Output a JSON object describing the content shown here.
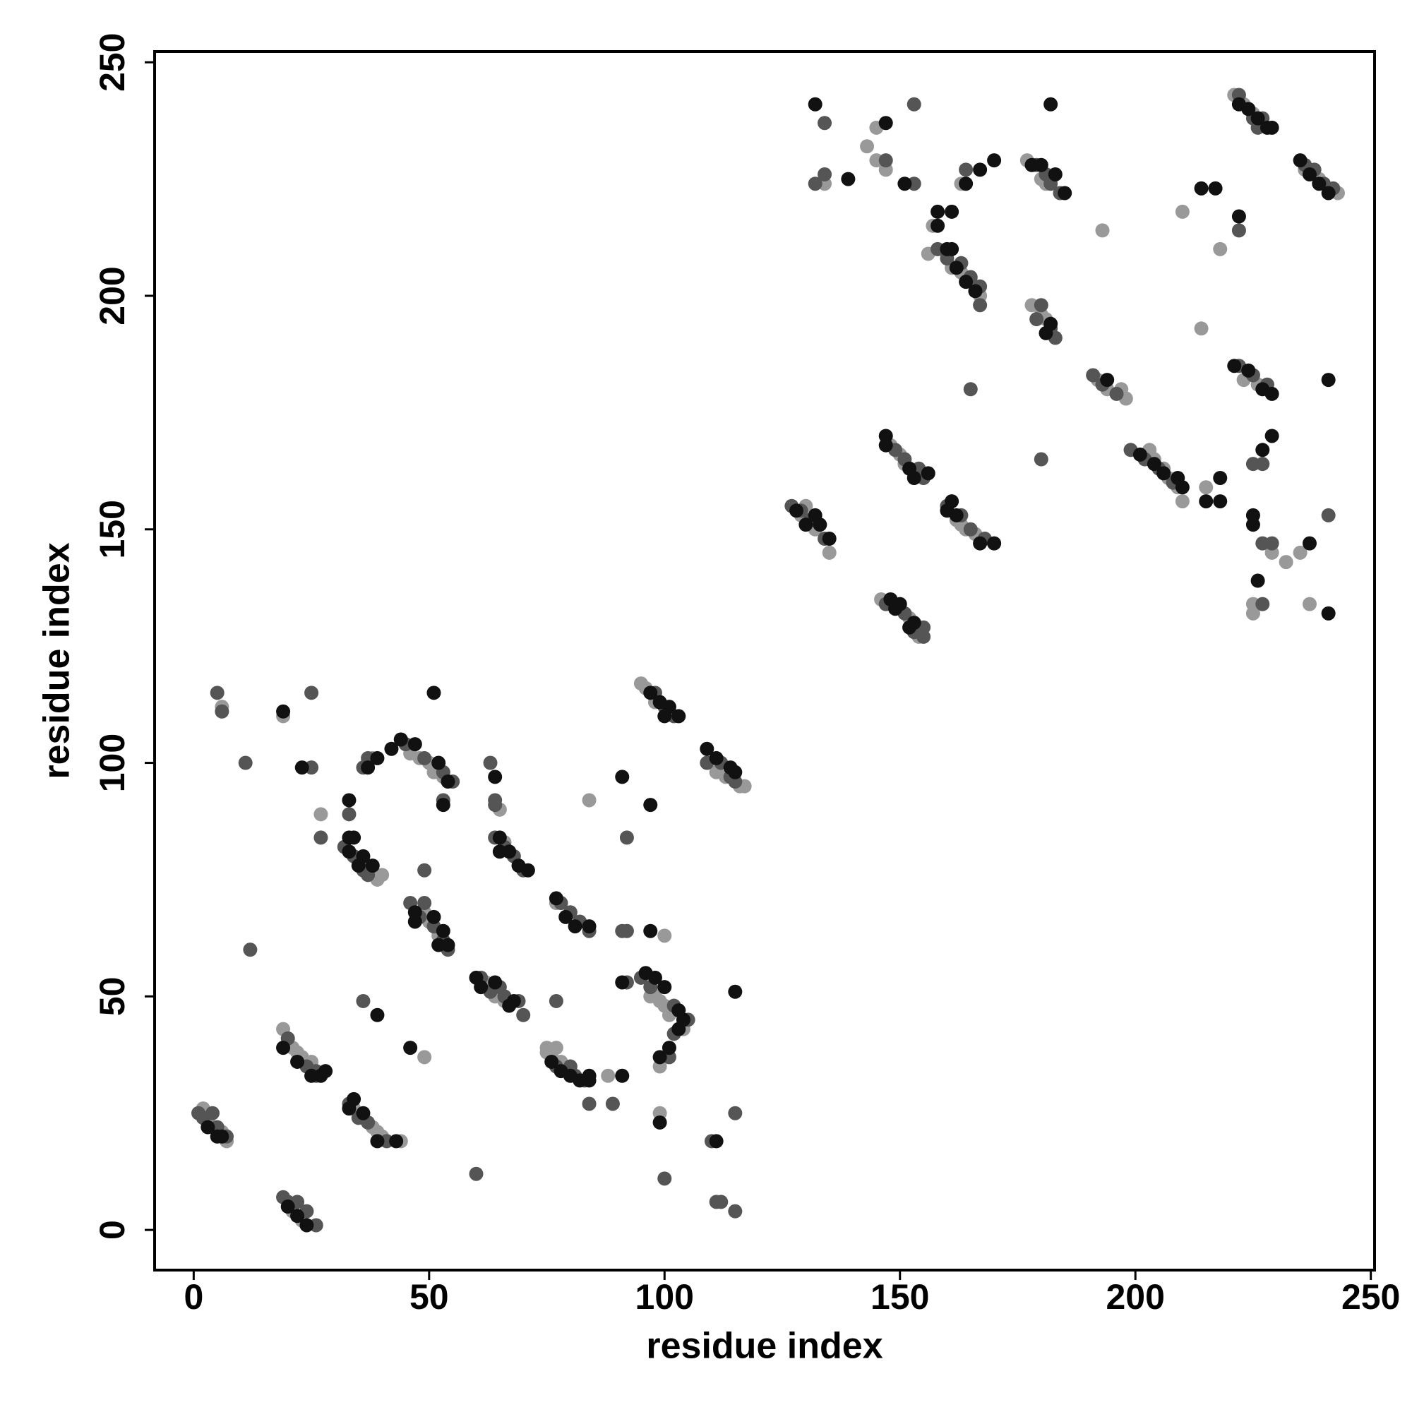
{
  "chart_data": {
    "type": "scatter",
    "x_label": "residue index",
    "y_label": "residue index",
    "xlim": [
      -8.3,
      250.8
    ],
    "ylim": [
      -8.6,
      252.3
    ],
    "xticks": [
      0,
      50,
      100,
      150,
      200,
      250
    ],
    "yticks": [
      0,
      50,
      100,
      150,
      200,
      250
    ],
    "series": [
      {
        "color": "#999999",
        "x": [
          2,
          3,
          6,
          7,
          21,
          23,
          19,
          21,
          22,
          23,
          25,
          34,
          36,
          38,
          39,
          40,
          44,
          35,
          37,
          38,
          39,
          40,
          38,
          46,
          48,
          50,
          51,
          53,
          6,
          19,
          27,
          49,
          84,
          49,
          50,
          52,
          62,
          64,
          66,
          65,
          66,
          77,
          75,
          75,
          76,
          77,
          78,
          79,
          88,
          100,
          99,
          97,
          98,
          99,
          100,
          101,
          99,
          104,
          95,
          96,
          98,
          111,
          113,
          116,
          117,
          129,
          130,
          132,
          135,
          146,
          148,
          152,
          154,
          148,
          150,
          151,
          153,
          162,
          163,
          164,
          166,
          157,
          156,
          161,
          163,
          165,
          167,
          134,
          143,
          145,
          145,
          147,
          163,
          177,
          180,
          181,
          178,
          180,
          181,
          192,
          194,
          197,
          198,
          203,
          204,
          206,
          207,
          209,
          210,
          193,
          210,
          214,
          215,
          218,
          221,
          223,
          225,
          227,
          236,
          239,
          243,
          223,
          226,
          229,
          232,
          235,
          225,
          225,
          237
        ],
        "values": [
          26,
          23,
          21,
          19,
          4,
          2,
          43,
          39,
          38,
          37,
          36,
          26,
          24,
          22,
          21,
          20,
          19,
          79,
          78,
          76,
          75,
          76,
          101,
          102,
          101,
          100,
          98,
          97,
          112,
          110,
          89,
          37,
          92,
          68,
          66,
          63,
          53,
          50,
          49,
          90,
          83,
          70,
          39,
          38,
          37,
          39,
          36,
          35,
          33,
          63,
          25,
          50,
          51,
          49,
          48,
          46,
          35,
          43,
          117,
          116,
          113,
          98,
          97,
          95,
          95,
          153,
          155,
          150,
          145,
          135,
          134,
          131,
          127,
          168,
          166,
          164,
          162,
          152,
          151,
          150,
          149,
          215,
          209,
          206,
          205,
          203,
          200,
          224,
          232,
          236,
          229,
          227,
          224,
          229,
          225,
          224,
          198,
          196,
          195,
          182,
          180,
          180,
          178,
          167,
          165,
          163,
          161,
          159,
          156,
          214,
          218,
          193,
          159,
          210,
          243,
          241,
          239,
          237,
          227,
          225,
          222,
          182,
          181,
          145,
          143,
          145,
          134,
          132,
          134
        ]
      },
      {
        "color": "#555555",
        "x": [
          1,
          2,
          4,
          5,
          7,
          19,
          20,
          22,
          24,
          26,
          20,
          24,
          26,
          26,
          33,
          35,
          37,
          41,
          33,
          32,
          34,
          36,
          37,
          36,
          37,
          44,
          45,
          49,
          53,
          55,
          53,
          5,
          6,
          11,
          12,
          25,
          25,
          27,
          36,
          49,
          60,
          46,
          49,
          48,
          51,
          53,
          54,
          61,
          63,
          65,
          66,
          69,
          70,
          63,
          64,
          64,
          64,
          66,
          68,
          70,
          78,
          80,
          82,
          84,
          77,
          80,
          81,
          83,
          84,
          77,
          89,
          92,
          91,
          92,
          92,
          100,
          110,
          111,
          112,
          115,
          115,
          95,
          97,
          102,
          105,
          102,
          101,
          98,
          100,
          102,
          109,
          112,
          114,
          115,
          127,
          129,
          131,
          134,
          147,
          151,
          153,
          155,
          155,
          149,
          151,
          154,
          155,
          160,
          163,
          165,
          168,
          158,
          160,
          163,
          165,
          167,
          167,
          134,
          134,
          132,
          147,
          153,
          153,
          164,
          165,
          179,
          181,
          182,
          184,
          180,
          179,
          182,
          183,
          191,
          193,
          196,
          199,
          202,
          205,
          208,
          180,
          222,
          222,
          225,
          227,
          226,
          236,
          238,
          240,
          242,
          222,
          225,
          228,
          225,
          227,
          227,
          229,
          241,
          227
        ],
        "values": [
          25,
          24,
          25,
          22,
          20,
          7,
          6,
          6,
          4,
          1,
          41,
          35,
          34,
          33,
          27,
          24,
          23,
          19,
          89,
          82,
          80,
          77,
          76,
          99,
          101,
          105,
          104,
          101,
          98,
          96,
          92,
          115,
          111,
          100,
          60,
          99,
          115,
          84,
          49,
          77,
          12,
          70,
          70,
          67,
          65,
          62,
          60,
          54,
          51,
          52,
          50,
          49,
          46,
          100,
          91,
          92,
          84,
          82,
          80,
          77,
          70,
          68,
          66,
          64,
          35,
          35,
          33,
          32,
          27,
          49,
          27,
          64,
          64,
          84,
          53,
          11,
          19,
          6,
          6,
          4,
          25,
          54,
          52,
          48,
          45,
          42,
          37,
          115,
          112,
          110,
          100,
          100,
          97,
          96,
          155,
          154,
          152,
          148,
          134,
          132,
          128,
          129,
          127,
          167,
          165,
          163,
          161,
          155,
          153,
          150,
          148,
          210,
          208,
          207,
          204,
          202,
          198,
          237,
          226,
          224,
          229,
          241,
          224,
          227,
          180,
          228,
          226,
          224,
          222,
          198,
          195,
          193,
          191,
          183,
          181,
          179,
          167,
          165,
          163,
          160,
          165,
          214,
          243,
          238,
          238,
          236,
          228,
          227,
          224,
          223,
          185,
          183,
          181,
          164,
          164,
          147,
          147,
          153,
          134
        ]
      },
      {
        "color": "#111111",
        "x": [
          3,
          5,
          6,
          20,
          22,
          24,
          19,
          22,
          25,
          27,
          28,
          33,
          34,
          36,
          39,
          43,
          33,
          33,
          34,
          33,
          35,
          36,
          38,
          37,
          39,
          42,
          44,
          47,
          52,
          54,
          53,
          19,
          23,
          39,
          46,
          51,
          47,
          47,
          51,
          53,
          52,
          54,
          60,
          61,
          64,
          67,
          68,
          64,
          65,
          65,
          67,
          69,
          71,
          77,
          79,
          81,
          84,
          76,
          78,
          80,
          82,
          84,
          84,
          91,
          91,
          91,
          97,
          97,
          99,
          111,
          115,
          96,
          98,
          100,
          103,
          104,
          103,
          101,
          99,
          97,
          99,
          100,
          101,
          103,
          109,
          111,
          114,
          115,
          128,
          130,
          132,
          133,
          135,
          148,
          149,
          150,
          152,
          153,
          147,
          147,
          152,
          153,
          156,
          160,
          161,
          162,
          167,
          170,
          158,
          158,
          161,
          160,
          161,
          162,
          164,
          166,
          132,
          139,
          147,
          151,
          164,
          167,
          170,
          178,
          180,
          183,
          185,
          182,
          181,
          182,
          194,
          201,
          204,
          206,
          209,
          210,
          214,
          215,
          217,
          218,
          218,
          222,
          222,
          224,
          226,
          228,
          229,
          235,
          237,
          239,
          241,
          221,
          224,
          227,
          229,
          227,
          229,
          241,
          225,
          225,
          226,
          237,
          241
        ],
        "values": [
          22,
          20,
          20,
          5,
          3,
          1,
          39,
          36,
          33,
          33,
          34,
          26,
          28,
          25,
          19,
          19,
          92,
          84,
          84,
          81,
          78,
          80,
          78,
          99,
          101,
          103,
          105,
          104,
          100,
          96,
          91,
          111,
          99,
          46,
          39,
          115,
          68,
          66,
          67,
          64,
          61,
          61,
          54,
          52,
          53,
          48,
          49,
          97,
          84,
          81,
          81,
          78,
          77,
          71,
          67,
          65,
          65,
          36,
          34,
          33,
          32,
          32,
          33,
          53,
          33,
          97,
          64,
          91,
          23,
          19,
          51,
          55,
          54,
          52,
          47,
          45,
          43,
          39,
          37,
          115,
          113,
          110,
          112,
          110,
          103,
          101,
          99,
          98,
          154,
          151,
          153,
          151,
          148,
          135,
          133,
          134,
          129,
          130,
          170,
          168,
          163,
          161,
          162,
          154,
          156,
          153,
          147,
          147,
          218,
          215,
          218,
          210,
          210,
          206,
          203,
          201,
          241,
          225,
          237,
          224,
          224,
          227,
          229,
          228,
          228,
          226,
          222,
          241,
          192,
          194,
          182,
          166,
          164,
          162,
          161,
          159,
          223,
          156,
          223,
          156,
          161,
          217,
          241,
          240,
          238,
          236,
          236,
          229,
          226,
          224,
          222,
          185,
          184,
          180,
          179,
          167,
          170,
          182,
          153,
          151,
          139,
          147,
          132
        ]
      }
    ]
  }
}
